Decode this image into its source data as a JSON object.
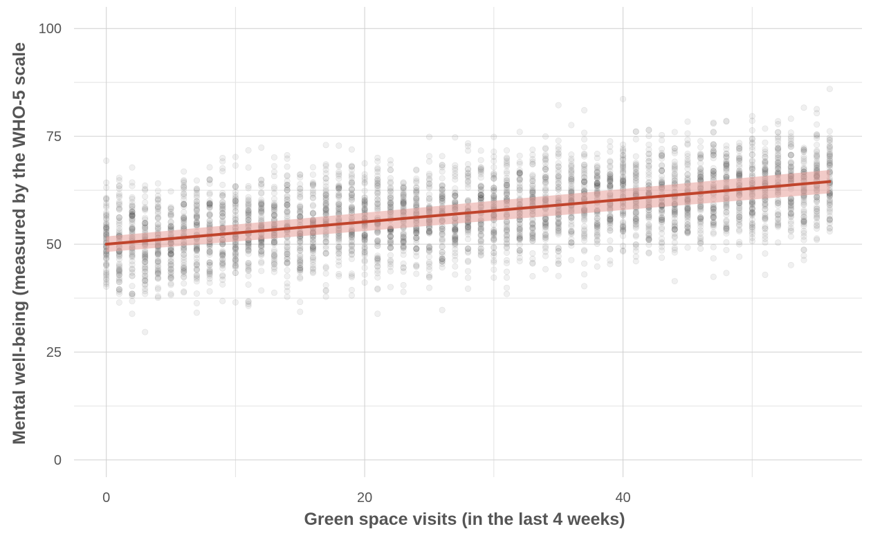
{
  "chart_data": {
    "type": "scatter",
    "xlabel": "Green space visits (in the last 4 weeks)",
    "ylabel": "Mental well-being (measured by the WHO-5 scale",
    "xlim": [
      -2.5,
      58.5
    ],
    "ylim": [
      -4,
      105
    ],
    "x_ticks": [
      0,
      20,
      40
    ],
    "x_tick_labels": [
      "0",
      "20",
      "40"
    ],
    "y_ticks": [
      0,
      25,
      50,
      75,
      100
    ],
    "y_tick_labels": [
      "0",
      "25",
      "50",
      "75",
      "100"
    ],
    "grid": true,
    "legend": "none",
    "point_color": "#3a3a3a",
    "point_opacity": 0.08,
    "x_values": "integers 0 to 56",
    "x": [
      0,
      1,
      2,
      3,
      4,
      5,
      6,
      7,
      8,
      9,
      10,
      11,
      12,
      13,
      14,
      15,
      16,
      17,
      18,
      19,
      20,
      21,
      22,
      23,
      24,
      25,
      26,
      27,
      28,
      29,
      30,
      31,
      32,
      33,
      34,
      35,
      36,
      37,
      38,
      39,
      40,
      41,
      42,
      43,
      44,
      45,
      46,
      47,
      48,
      49,
      50,
      51,
      52,
      53,
      54,
      55,
      56
    ],
    "series": [
      {
        "type": "scatter",
        "center_line": {
          "x": [
            0,
            56
          ],
          "y": [
            50,
            64.5
          ]
        },
        "spread_sd": 6.5,
        "points_per_x": 70,
        "y_range": [
          26,
          87
        ]
      },
      {
        "type": "line",
        "color": "#c0442c",
        "x": [
          0,
          56
        ],
        "y": [
          50,
          64.5
        ],
        "ci_color": "#e8a09a",
        "ci_lower": [
          48.2,
          61.8
        ],
        "ci_upper": [
          51.8,
          67.2
        ]
      }
    ]
  }
}
